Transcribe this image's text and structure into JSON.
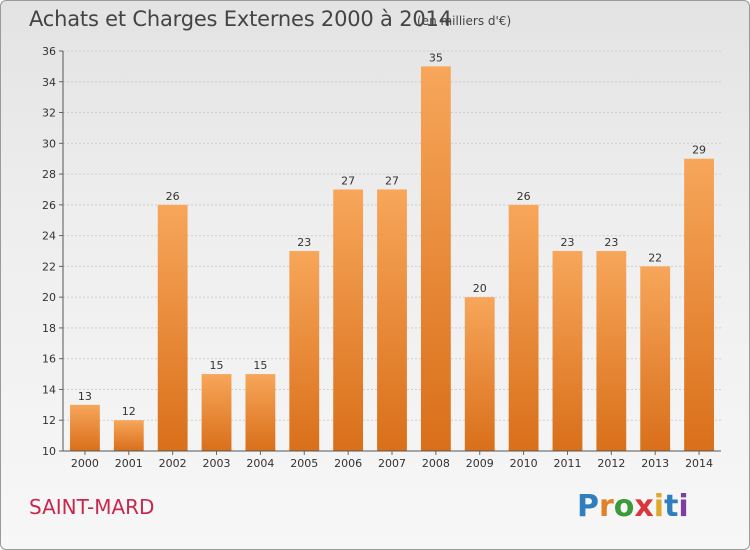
{
  "title": "Achats et Charges Externes 2000 à 2014",
  "subtitle": "(en milliers d'€)",
  "commune": "SAINT-MARD",
  "logo": {
    "text": "Proxiti",
    "letter_colors": [
      "#2f7fbf",
      "#e0822a",
      "#3d9a3a",
      "#d9363e",
      "#e0a82a",
      "#2f7fbf",
      "#7a3fa0"
    ]
  },
  "colors": {
    "bar_light": "#f7a65a",
    "bar_dark": "#d96f1a",
    "accent": "#c8284f"
  },
  "chart_data": {
    "type": "bar",
    "categories": [
      "2000",
      "2001",
      "2002",
      "2003",
      "2004",
      "2005",
      "2006",
      "2007",
      "2008",
      "2009",
      "2010",
      "2011",
      "2012",
      "2013",
      "2014"
    ],
    "values": [
      13,
      12,
      26,
      15,
      15,
      23,
      27,
      27,
      35,
      20,
      26,
      23,
      23,
      22,
      29
    ],
    "title": "Achats et Charges Externes 2000 à 2014",
    "xlabel": "",
    "ylabel": "",
    "ylim": [
      10,
      36
    ],
    "yticks": [
      10,
      12,
      14,
      16,
      18,
      20,
      22,
      24,
      26,
      28,
      30,
      32,
      34,
      36
    ],
    "grid": true,
    "legend": "none"
  }
}
